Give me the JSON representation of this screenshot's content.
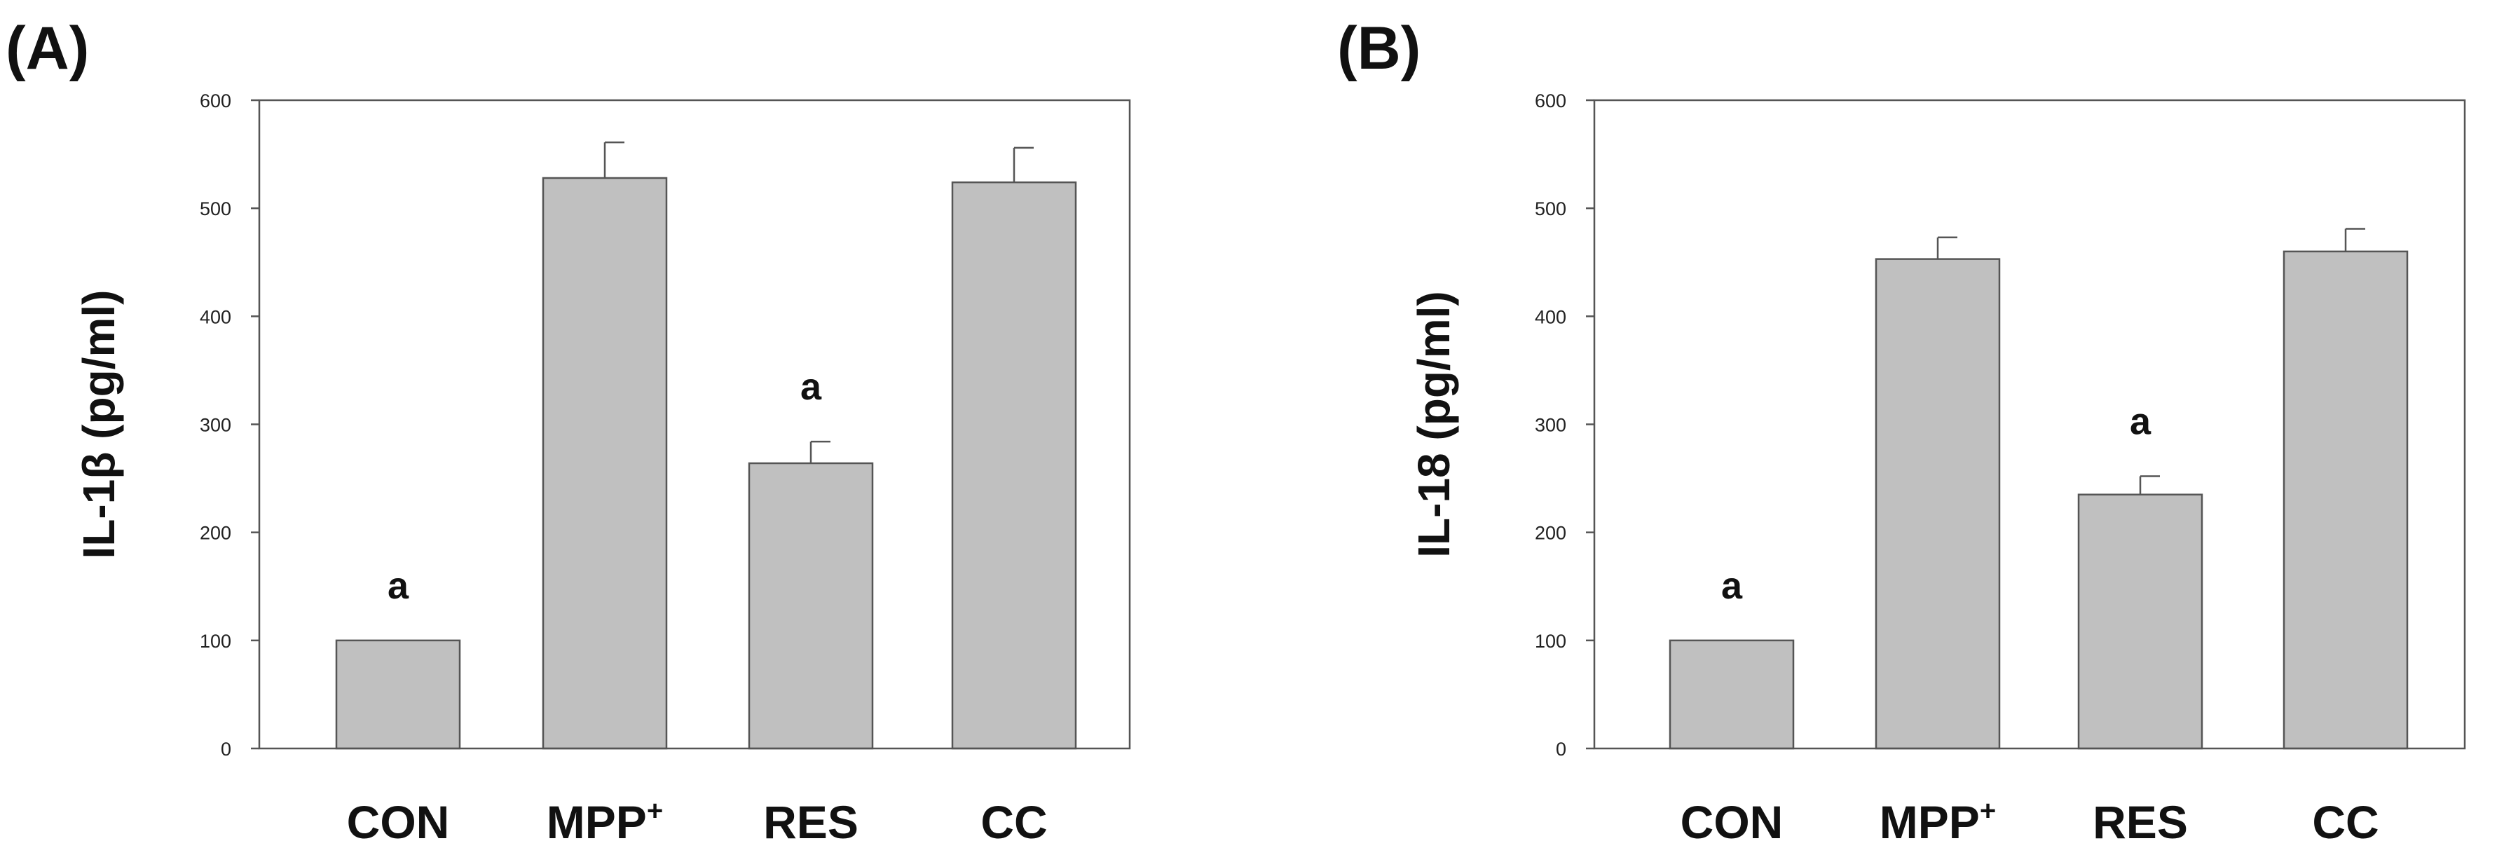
{
  "chart_data": [
    {
      "type": "bar",
      "panel_label": "(A)",
      "ylabel": "IL-1β (pg/ml)",
      "ylim": [
        0,
        600
      ],
      "yticks": [
        "0",
        "100",
        "200",
        "300",
        "400",
        "500",
        "600"
      ],
      "grid": false,
      "categories": [
        {
          "label": "CON",
          "sup": ""
        },
        {
          "label": "MPP",
          "sup": "+"
        },
        {
          "label": "RES",
          "sup": ""
        },
        {
          "label": "CC",
          "sup": ""
        }
      ],
      "values": [
        100,
        528,
        264,
        524
      ],
      "errors": [
        0,
        33,
        20,
        32
      ],
      "annotations": [
        "a",
        "",
        "a",
        ""
      ],
      "bar_color": "#c0c0c0",
      "edge_color": "#555555"
    },
    {
      "type": "bar",
      "panel_label": "(B)",
      "ylabel": "IL-18 (pg/ml)",
      "ylim": [
        0,
        600
      ],
      "yticks": [
        "0",
        "100",
        "200",
        "300",
        "400",
        "500",
        "600"
      ],
      "grid": false,
      "categories": [
        {
          "label": "CON",
          "sup": ""
        },
        {
          "label": "MPP",
          "sup": "+"
        },
        {
          "label": "RES",
          "sup": ""
        },
        {
          "label": "CC",
          "sup": ""
        }
      ],
      "values": [
        100,
        453,
        235,
        460
      ],
      "errors": [
        0,
        20,
        17,
        21
      ],
      "annotations": [
        "a",
        "",
        "a",
        ""
      ],
      "bar_color": "#c0c0c0",
      "edge_color": "#555555"
    }
  ]
}
